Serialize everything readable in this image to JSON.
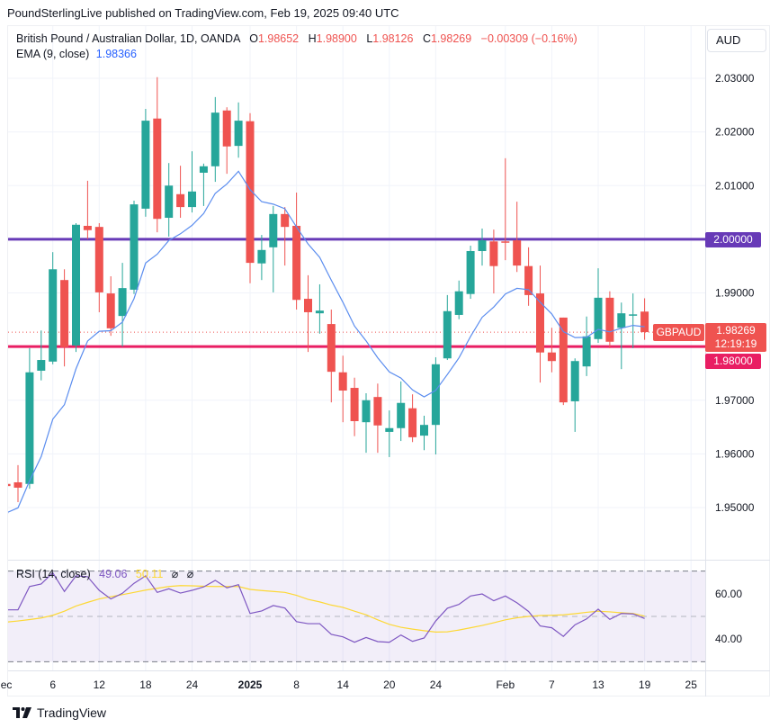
{
  "header": {
    "published": "PoundSterlingLive published on TradingView.com, Feb 19, 2025 09:40 UTC"
  },
  "legend": {
    "symbol": "British Pound / Australian Dollar, 1D, OANDA",
    "o_label": "O",
    "o": "1.98652",
    "h_label": "H",
    "h": "1.98900",
    "l_label": "L",
    "l": "1.98126",
    "c_label": "C",
    "c": "1.98269",
    "change": "−0.00309 (−0.16%)",
    "ema_label": "EMA (9, close)",
    "ema_value": "1.98366"
  },
  "currency_button": "AUD",
  "price_axis": {
    "labels": [
      "2.03000",
      "2.02000",
      "2.01000",
      "2.00000",
      "1.99000",
      "1.98000",
      "1.97000",
      "1.96000",
      "1.95000"
    ],
    "values": [
      2.03,
      2.02,
      2.01,
      2.0,
      1.99,
      1.98,
      1.97,
      1.96,
      1.95
    ]
  },
  "levels": [
    {
      "value": 2.0,
      "label": "2.00000",
      "color": "#673ab7"
    },
    {
      "value": 1.98,
      "label": "1.98000",
      "color": "#e91e63"
    }
  ],
  "current": {
    "symbol": "GBPAUD",
    "price": "1.98269",
    "countdown": "12:19:19",
    "value": 1.98269,
    "color": "#ef5350"
  },
  "colors": {
    "up": "#26a69a",
    "down": "#ef5350",
    "ema": "#5b8def",
    "rsi": "#7e57c2",
    "rsi_ma": "#fdd835"
  },
  "rsi": {
    "label": "RSI (14, close)",
    "value": "49.06",
    "ma_value": "50.11",
    "extra1": "⌀",
    "extra2": "⌀",
    "axis_labels": [
      "60.00",
      "40.00"
    ],
    "axis_values": [
      60,
      40
    ],
    "bands": [
      70,
      50,
      30
    ],
    "values": [
      52.9,
      52.9,
      63.2,
      64.3,
      69.2,
      61.0,
      67.9,
      67.5,
      61.5,
      57.7,
      60.2,
      64.6,
      67.9,
      60.6,
      62.2,
      60.3,
      61.5,
      63.0,
      65.9,
      62.6,
      64.0,
      51.3,
      52.4,
      54.8,
      53.7,
      47.7,
      46.8,
      46.8,
      42.1,
      41.0,
      38.6,
      40.7,
      38.9,
      38.6,
      41.8,
      39.0,
      40.5,
      48.0,
      53.6,
      55.3,
      59.0,
      59.9,
      56.9,
      59.0,
      56.0,
      52.2,
      45.8,
      45.0,
      41.2,
      46.3,
      48.9,
      53.2,
      48.7,
      51.3,
      51.1,
      49.06
    ],
    "ma": [
      47.5,
      48.0,
      48.6,
      49.3,
      50.5,
      52.3,
      54.6,
      56.2,
      57.7,
      58.7,
      59.6,
      60.6,
      61.6,
      62.4,
      63.2,
      63.6,
      63.5,
      63.3,
      63.2,
      63.2,
      63.2,
      61.9,
      61.4,
      61.0,
      60.6,
      59.3,
      57.5,
      56.4,
      55.0,
      54.0,
      52.3,
      50.7,
      48.5,
      46.5,
      45.2,
      44.4,
      43.7,
      43.1,
      43.2,
      44.0,
      45.0,
      46.0,
      47.2,
      48.5,
      49.4,
      50.0,
      50.4,
      50.5,
      50.7,
      51.2,
      51.8,
      52.3,
      52.0,
      51.6,
      51.3,
      50.11
    ]
  },
  "time_axis": [
    {
      "label": "ec",
      "bar": 0
    },
    {
      "label": "6",
      "bar": 4
    },
    {
      "label": "12",
      "bar": 8
    },
    {
      "label": "18",
      "bar": 12
    },
    {
      "label": "24",
      "bar": 16
    },
    {
      "label": "2025",
      "bar": 21,
      "bold": true
    },
    {
      "label": "8",
      "bar": 25
    },
    {
      "label": "14",
      "bar": 29
    },
    {
      "label": "20",
      "bar": 33
    },
    {
      "label": "24",
      "bar": 37
    },
    {
      "label": "Feb",
      "bar": 43
    },
    {
      "label": "7",
      "bar": 47
    },
    {
      "label": "13",
      "bar": 51
    },
    {
      "label": "19",
      "bar": 55
    },
    {
      "label": "25",
      "bar": 59
    }
  ],
  "ema_seed": 1.949,
  "candles": [
    [
      1.9544,
      1.9547,
      1.9538,
      1.954
    ],
    [
      1.9547,
      1.9579,
      1.951,
      1.9537
    ],
    [
      1.9544,
      1.9797,
      1.9535,
      1.9752
    ],
    [
      1.9755,
      1.983,
      1.9737,
      1.9775
    ],
    [
      1.9772,
      1.9976,
      1.9767,
      1.9944
    ],
    [
      1.9924,
      1.9944,
      1.9763,
      1.9799
    ],
    [
      1.9802,
      2.003,
      1.979,
      2.0027
    ],
    [
      2.0025,
      2.0109,
      2.0,
      2.0017
    ],
    [
      2.0023,
      2.003,
      1.9864,
      1.9901
    ],
    [
      1.9899,
      1.9931,
      1.982,
      1.9834
    ],
    [
      1.9857,
      1.9956,
      1.98,
      1.9909
    ],
    [
      1.9906,
      2.0072,
      1.9898,
      2.0065
    ],
    [
      2.0057,
      2.0243,
      2.0042,
      2.0221
    ],
    [
      2.0225,
      2.0302,
      2.0013,
      2.0038
    ],
    [
      2.004,
      2.0142,
      2.0005,
      2.01
    ],
    [
      2.0084,
      2.0137,
      2.004,
      2.006
    ],
    [
      2.006,
      2.0164,
      2.005,
      2.0089
    ],
    [
      2.0124,
      2.0141,
      2.0062,
      2.0136
    ],
    [
      2.0136,
      2.0265,
      2.0107,
      2.0236
    ],
    [
      2.024,
      2.0246,
      2.0122,
      2.0173
    ],
    [
      2.0174,
      2.0255,
      2.0152,
      2.0221
    ],
    [
      2.022,
      2.0235,
      1.9918,
      1.9956
    ],
    [
      1.9955,
      2.0008,
      1.9924,
      1.998
    ],
    [
      1.9985,
      2.0062,
      1.9901,
      2.0047
    ],
    [
      2.0047,
      2.006,
      1.9951,
      2.0023
    ],
    [
      2.0025,
      2.0087,
      1.9869,
      1.9887
    ],
    [
      1.9889,
      1.9933,
      1.979,
      1.9864
    ],
    [
      1.9862,
      1.9916,
      1.9824,
      1.9867
    ],
    [
      1.9842,
      1.9869,
      1.9696,
      1.9753
    ],
    [
      1.9752,
      1.9783,
      1.9659,
      1.9718
    ],
    [
      1.9723,
      1.9742,
      1.9633,
      1.9661
    ],
    [
      1.9659,
      1.9713,
      1.9602,
      1.97
    ],
    [
      1.9706,
      1.9731,
      1.9602,
      1.9653
    ],
    [
      1.9641,
      1.9681,
      1.9594,
      1.9648
    ],
    [
      1.9648,
      1.9735,
      1.9624,
      1.9695
    ],
    [
      1.9685,
      1.9711,
      1.9622,
      1.9631
    ],
    [
      1.9634,
      1.9671,
      1.9607,
      1.9654
    ],
    [
      1.9654,
      1.978,
      1.9599,
      1.9767
    ],
    [
      1.9778,
      1.9896,
      1.9775,
      1.9866
    ],
    [
      1.9859,
      1.9923,
      1.9851,
      1.9903
    ],
    [
      1.9898,
      1.9988,
      1.9889,
      1.9978
    ],
    [
      1.9978,
      2.002,
      1.9951,
      1.9998
    ],
    [
      1.9996,
      2.0018,
      1.9899,
      1.995
    ],
    [
      1.9996,
      2.0151,
      1.9961,
      1.9995
    ],
    [
      1.9998,
      2.007,
      1.9939,
      1.9951
    ],
    [
      1.995,
      1.9985,
      1.9876,
      1.9896
    ],
    [
      1.9899,
      1.9951,
      1.9733,
      1.9789
    ],
    [
      1.9789,
      1.9835,
      1.9752,
      1.9773
    ],
    [
      1.9854,
      1.9854,
      1.9691,
      1.9696
    ],
    [
      1.9698,
      1.9778,
      1.9641,
      1.9773
    ],
    [
      1.9763,
      1.9856,
      1.9745,
      1.9819
    ],
    [
      1.9814,
      1.9946,
      1.9807,
      1.9891
    ],
    [
      1.9891,
      1.9903,
      1.9797,
      1.9809
    ],
    [
      1.9835,
      1.9882,
      1.9758,
      1.9862
    ],
    [
      1.9859,
      1.9899,
      1.9797,
      1.986
    ],
    [
      1.98652,
      1.989,
      1.98126,
      1.98269
    ]
  ],
  "footer": {
    "brand": "TradingView"
  }
}
